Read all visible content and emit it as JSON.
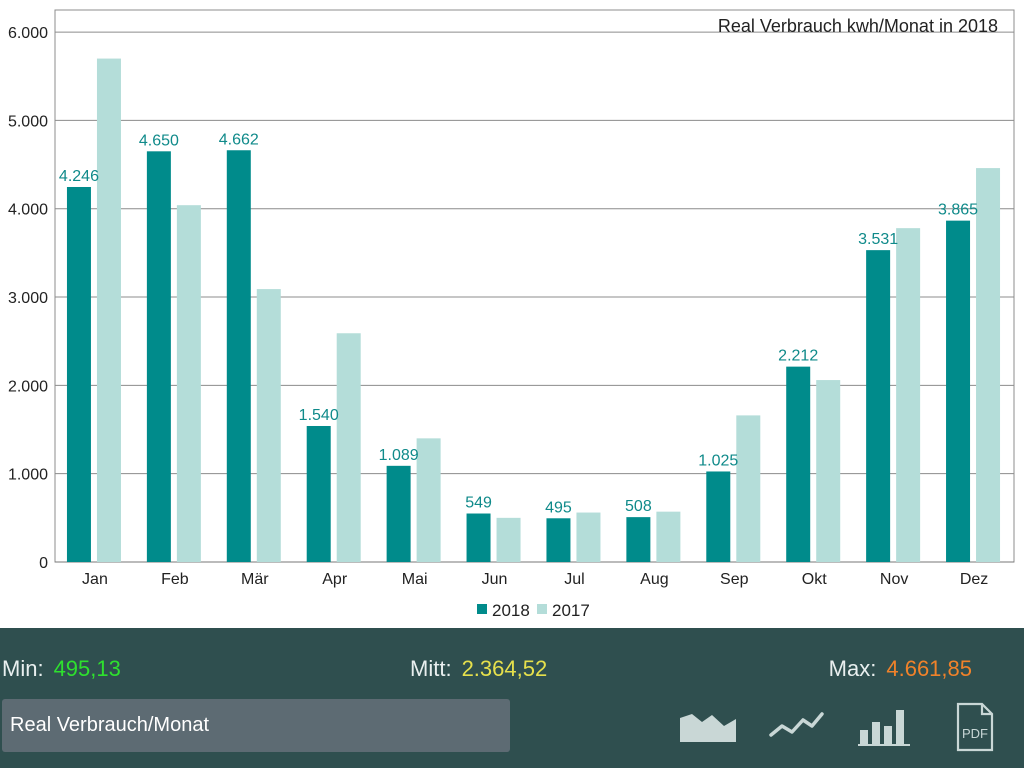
{
  "chart_data": {
    "type": "bar",
    "title": "Real Verbrauch  kwh/Monat in 2018",
    "categories": [
      "Jan",
      "Feb",
      "Mär",
      "Apr",
      "Mai",
      "Jun",
      "Jul",
      "Aug",
      "Sep",
      "Okt",
      "Nov",
      "Dez"
    ],
    "series": [
      {
        "name": "2018",
        "color": "#008b8b",
        "values": [
          4246,
          4650,
          4662,
          1540,
          1089,
          549,
          495,
          508,
          1025,
          2212,
          3531,
          3865
        ],
        "labels": [
          "4.246",
          "4.650",
          "4.662",
          "1.540",
          "1.089",
          "549",
          "495",
          "508",
          "1.025",
          "2.212",
          "3.531",
          "3.865"
        ]
      },
      {
        "name": "2017",
        "color": "#b4ddd9",
        "values": [
          5700,
          4040,
          3090,
          2590,
          1400,
          500,
          560,
          570,
          1660,
          2060,
          3780,
          4460
        ]
      }
    ],
    "yticks": [
      0,
      1000,
      2000,
      3000,
      4000,
      5000,
      6000
    ],
    "ytick_labels": [
      "0",
      "1.000",
      "2.000",
      "3.000",
      "4.000",
      "5.000",
      "6.000"
    ],
    "ylim": [
      0,
      6250
    ],
    "grid": true,
    "legend_position": "bottom-center"
  },
  "stats": {
    "min_label": "Min:",
    "min_value": "495,13",
    "min_color": "#2ee02e",
    "mitt_label": "Mitt:",
    "mitt_value": "2.364,52",
    "mitt_color": "#e6e04c",
    "max_label": "Max:",
    "max_value": "4.661,85",
    "max_color": "#f0822a"
  },
  "range_select": {
    "value": "Real Verbrauch/Monat"
  },
  "toolbar": {
    "icons": [
      "area-chart-icon",
      "line-chart-icon",
      "bar-chart-icon",
      "pdf-icon"
    ],
    "pdf_label": "PDF"
  }
}
